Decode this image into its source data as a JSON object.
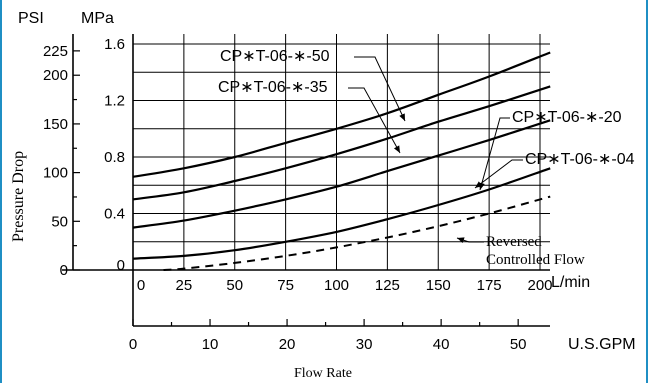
{
  "chart_data": {
    "type": "line",
    "units": {
      "psi": "PSI",
      "mpa": "MPa",
      "lmin": "L/min",
      "gpm": "U.S.GPM"
    },
    "ylabel": "Pressure Drop",
    "xlabel": "Flow Rate",
    "mpa_ticks": [
      "1.6",
      "1.2",
      "0.8",
      "0.4",
      "0"
    ],
    "mpa_tick_values": [
      1.6,
      1.2,
      0.8,
      0.4,
      0
    ],
    "psi_ticks": [
      "225",
      "200",
      "150",
      "100",
      "50",
      "0"
    ],
    "psi_tick_values": [
      225,
      200,
      150,
      100,
      50,
      0
    ],
    "lmin_ticks": [
      "0",
      "25",
      "50",
      "75",
      "100",
      "125",
      "150",
      "175",
      "200"
    ],
    "lmin_tick_values": [
      0,
      25,
      50,
      75,
      100,
      125,
      150,
      175,
      200
    ],
    "gpm_ticks": [
      "0",
      "10",
      "20",
      "30",
      "40",
      "50"
    ],
    "gpm_tick_values": [
      0,
      10,
      20,
      30,
      40,
      50
    ],
    "xlim_lmin": [
      0,
      205
    ],
    "ylim_mpa": [
      0,
      1.65
    ],
    "grid": true,
    "series": [
      {
        "name": "CP∗T-06-∗-50",
        "style": "solid",
        "x": [
          0,
          25,
          50,
          75,
          100,
          125,
          150,
          175,
          205
        ],
        "y": [
          0.66,
          0.72,
          0.8,
          0.9,
          1.0,
          1.11,
          1.24,
          1.37,
          1.54
        ]
      },
      {
        "name": "CP∗T-06-∗-35",
        "style": "solid",
        "x": [
          0,
          25,
          50,
          75,
          100,
          125,
          150,
          175,
          205
        ],
        "y": [
          0.5,
          0.55,
          0.63,
          0.72,
          0.82,
          0.93,
          1.05,
          1.16,
          1.3
        ]
      },
      {
        "name": "CP∗T-06-∗-20",
        "style": "solid",
        "x": [
          0,
          25,
          50,
          75,
          100,
          125,
          150,
          175,
          205
        ],
        "y": [
          0.3,
          0.35,
          0.42,
          0.5,
          0.59,
          0.7,
          0.81,
          0.92,
          1.06
        ]
      },
      {
        "name": "CP∗T-06-∗-04",
        "style": "solid",
        "x": [
          0,
          25,
          50,
          75,
          100,
          125,
          150,
          175,
          205
        ],
        "y": [
          0.08,
          0.1,
          0.14,
          0.2,
          0.27,
          0.36,
          0.46,
          0.57,
          0.72
        ]
      },
      {
        "name": "Reversed\nControlled Flow",
        "style": "dashed",
        "x": [
          15,
          25,
          50,
          75,
          100,
          125,
          150,
          175,
          205
        ],
        "y": [
          0.0,
          0.01,
          0.05,
          0.1,
          0.16,
          0.23,
          0.31,
          0.4,
          0.52
        ]
      }
    ]
  }
}
